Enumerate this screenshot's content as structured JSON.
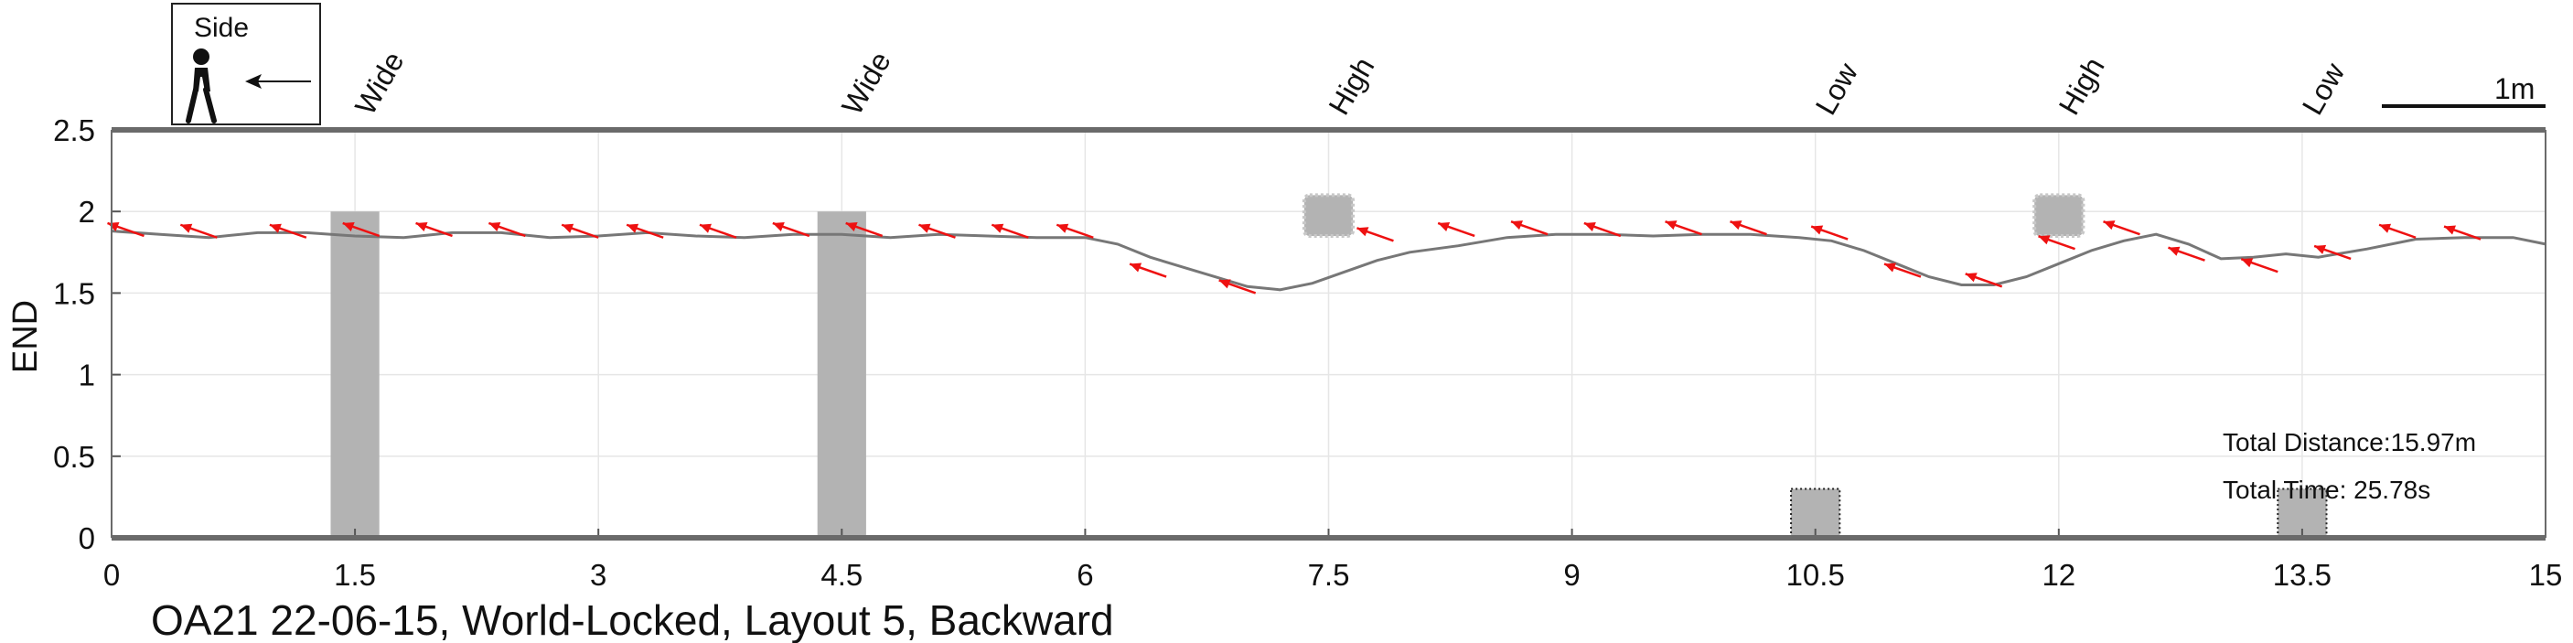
{
  "chart_data": {
    "type": "line",
    "title": "OA21 22-06-15, World-Locked, Layout 5, Backward",
    "ylabel": "END",
    "xlabel": "",
    "xlim": [
      0,
      15
    ],
    "ylim": [
      0,
      2.5
    ],
    "x_ticks": [
      "0",
      "1.5",
      "3",
      "4.5",
      "6",
      "7.5",
      "9",
      "10.5",
      "12",
      "13.5",
      "15"
    ],
    "y_ticks": [
      "0",
      "0.5",
      "1",
      "1.5",
      "2",
      "2.5"
    ],
    "grid": true,
    "legend": {
      "label": "Side",
      "position": "top-left",
      "icon": "walking-person-icon",
      "arrow": "left-arrow-icon"
    },
    "scale_bar_label": "1m",
    "path_color": "#777777",
    "arrow_color": "#ee1111",
    "obstacle_color": "#b3b3b3",
    "series": [
      {
        "values": [
          [
            0,
            1.88
          ],
          [
            0.3,
            1.86
          ],
          [
            0.6,
            1.84
          ],
          [
            0.9,
            1.87
          ],
          [
            1.2,
            1.87
          ],
          [
            1.5,
            1.85
          ],
          [
            1.8,
            1.84
          ],
          [
            2.1,
            1.87
          ],
          [
            2.4,
            1.87
          ],
          [
            2.7,
            1.84
          ],
          [
            3.0,
            1.85
          ],
          [
            3.3,
            1.87
          ],
          [
            3.6,
            1.85
          ],
          [
            3.9,
            1.84
          ],
          [
            4.2,
            1.86
          ],
          [
            4.5,
            1.86
          ],
          [
            4.8,
            1.84
          ],
          [
            5.1,
            1.86
          ],
          [
            5.4,
            1.85
          ],
          [
            5.7,
            1.84
          ],
          [
            6.0,
            1.84
          ],
          [
            6.2,
            1.8
          ],
          [
            6.4,
            1.72
          ],
          [
            6.6,
            1.66
          ],
          [
            6.8,
            1.6
          ],
          [
            7.0,
            1.54
          ],
          [
            7.2,
            1.52
          ],
          [
            7.4,
            1.56
          ],
          [
            7.6,
            1.63
          ],
          [
            7.8,
            1.7
          ],
          [
            8.0,
            1.75
          ],
          [
            8.3,
            1.79
          ],
          [
            8.6,
            1.84
          ],
          [
            8.9,
            1.86
          ],
          [
            9.2,
            1.86
          ],
          [
            9.5,
            1.85
          ],
          [
            9.8,
            1.86
          ],
          [
            10.1,
            1.86
          ],
          [
            10.4,
            1.84
          ],
          [
            10.6,
            1.82
          ],
          [
            10.8,
            1.76
          ],
          [
            11.0,
            1.68
          ],
          [
            11.2,
            1.6
          ],
          [
            11.4,
            1.55
          ],
          [
            11.6,
            1.55
          ],
          [
            11.8,
            1.6
          ],
          [
            12.0,
            1.68
          ],
          [
            12.2,
            1.76
          ],
          [
            12.4,
            1.82
          ],
          [
            12.6,
            1.86
          ],
          [
            12.8,
            1.8
          ],
          [
            13.0,
            1.71
          ],
          [
            13.2,
            1.72
          ],
          [
            13.4,
            1.74
          ],
          [
            13.6,
            1.72
          ],
          [
            13.9,
            1.77
          ],
          [
            14.2,
            1.83
          ],
          [
            14.5,
            1.84
          ],
          [
            14.8,
            1.84
          ],
          [
            15.0,
            1.8
          ]
        ]
      }
    ],
    "heading_arrows": [
      [
        0.2,
        1.85
      ],
      [
        0.65,
        1.84
      ],
      [
        1.2,
        1.84
      ],
      [
        1.65,
        1.85
      ],
      [
        2.1,
        1.85
      ],
      [
        2.55,
        1.85
      ],
      [
        3.0,
        1.84
      ],
      [
        3.4,
        1.84
      ],
      [
        3.85,
        1.84
      ],
      [
        4.3,
        1.85
      ],
      [
        4.75,
        1.85
      ],
      [
        5.2,
        1.84
      ],
      [
        5.65,
        1.84
      ],
      [
        6.05,
        1.84
      ],
      [
        6.5,
        1.6
      ],
      [
        7.05,
        1.5
      ],
      [
        7.9,
        1.82
      ],
      [
        8.4,
        1.85
      ],
      [
        8.85,
        1.86
      ],
      [
        9.3,
        1.85
      ],
      [
        9.8,
        1.86
      ],
      [
        10.2,
        1.86
      ],
      [
        10.7,
        1.83
      ],
      [
        11.15,
        1.6
      ],
      [
        11.65,
        1.54
      ],
      [
        12.1,
        1.77
      ],
      [
        12.5,
        1.86
      ],
      [
        12.9,
        1.7
      ],
      [
        13.35,
        1.63
      ],
      [
        13.8,
        1.71
      ],
      [
        14.2,
        1.84
      ],
      [
        14.6,
        1.83
      ]
    ],
    "obstacles": [
      {
        "label": "Wide",
        "x_center": 1.5,
        "y_bottom": 0,
        "y_top": 2.0,
        "style": "solid"
      },
      {
        "label": "Wide",
        "x_center": 4.5,
        "y_bottom": 0,
        "y_top": 2.0,
        "style": "solid"
      },
      {
        "label": "High",
        "x_center": 7.5,
        "y_bottom": 1.85,
        "y_top": 2.1,
        "style": "rounded"
      },
      {
        "label": "Low",
        "x_center": 10.5,
        "y_bottom": 0,
        "y_top": 0.3,
        "style": "dotted"
      },
      {
        "label": "High",
        "x_center": 12.0,
        "y_bottom": 1.85,
        "y_top": 2.1,
        "style": "rounded"
      },
      {
        "label": "Low",
        "x_center": 13.5,
        "y_bottom": 0,
        "y_top": 0.3,
        "style": "dotted"
      }
    ],
    "annotations": {
      "total_distance": "Total Distance:15.97m",
      "total_time": "Total Time: 25.78s"
    }
  }
}
